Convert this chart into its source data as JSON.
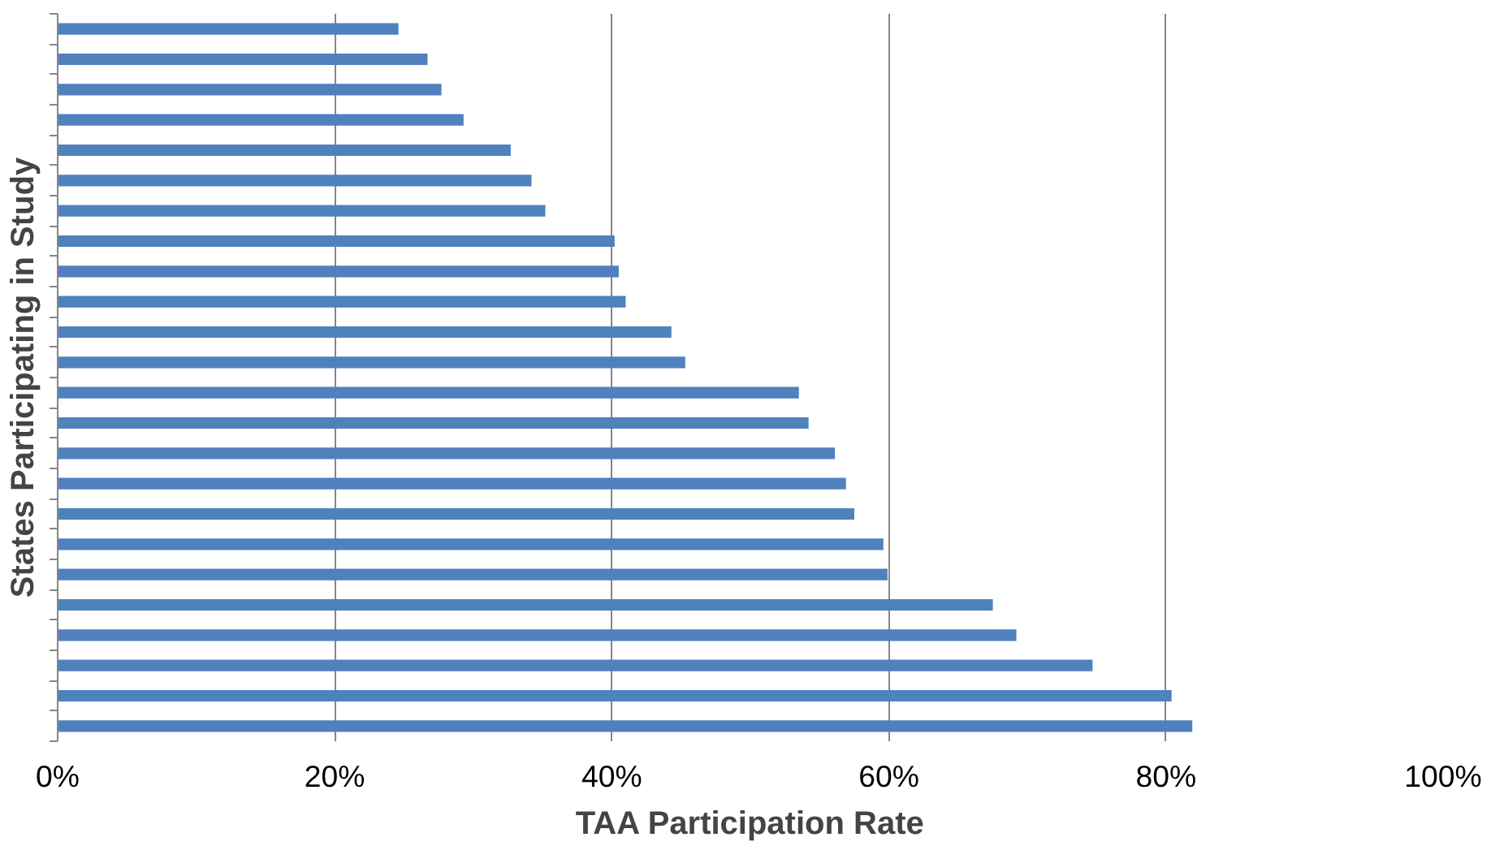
{
  "chart_data": {
    "type": "bar",
    "orientation": "horizontal",
    "xlabel": "TAA Participation Rate",
    "ylabel": "States Participating in Study",
    "categories": [
      null,
      null,
      null,
      null,
      null,
      null,
      null,
      null,
      null,
      null,
      null,
      null,
      null,
      null,
      null,
      null,
      null,
      null,
      null,
      null,
      null,
      null,
      null,
      null
    ],
    "values": [
      24.6,
      26.7,
      27.7,
      29.3,
      32.7,
      34.2,
      35.2,
      40.2,
      40.5,
      41.0,
      44.3,
      45.3,
      53.5,
      54.2,
      56.1,
      56.9,
      57.5,
      59.6,
      59.9,
      67.5,
      69.2,
      74.7,
      80.4,
      81.9
    ],
    "color": "#4f81bd",
    "xlim": [
      0,
      100
    ],
    "xticks": [
      {
        "value": 0,
        "label": "0%"
      },
      {
        "value": 20,
        "label": "20%"
      },
      {
        "value": 40,
        "label": "40%"
      },
      {
        "value": 60,
        "label": "60%"
      },
      {
        "value": 80,
        "label": "80%"
      },
      {
        "value": 100,
        "label": "100%"
      }
    ],
    "grid": "x"
  }
}
